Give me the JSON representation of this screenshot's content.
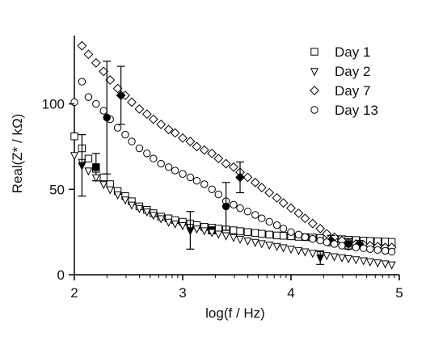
{
  "chart_data": {
    "type": "scatter",
    "xlabel": "log(f / Hz)",
    "ylabel": "Real(Z* / kΩ)",
    "xlim": [
      2,
      5
    ],
    "ylim": [
      0,
      140
    ],
    "x_ticks": [
      "2",
      "3",
      "4",
      "5"
    ],
    "y_ticks": [
      "0",
      "50",
      "100"
    ],
    "legend_position": "top-right",
    "series": [
      {
        "name": "Day 1",
        "marker": "square",
        "x": [
          2.0,
          2.07,
          2.13,
          2.2,
          2.27,
          2.33,
          2.4,
          2.47,
          2.53,
          2.6,
          2.67,
          2.73,
          2.8,
          2.87,
          2.93,
          3.0,
          3.07,
          3.13,
          3.2,
          3.27,
          3.33,
          3.4,
          3.47,
          3.53,
          3.6,
          3.67,
          3.73,
          3.8,
          3.87,
          3.93,
          4.0,
          4.07,
          4.13,
          4.2,
          4.27,
          4.33,
          4.4,
          4.47,
          4.53,
          4.6,
          4.67,
          4.73,
          4.8,
          4.87,
          4.93
        ],
        "y": [
          81,
          74,
          68,
          62,
          57,
          53,
          49,
          46,
          43,
          40,
          38,
          36,
          34,
          33,
          32,
          31,
          30,
          29,
          28,
          27.5,
          27,
          26.5,
          26,
          25.5,
          25,
          24.5,
          24,
          23.5,
          23,
          22.8,
          22.5,
          22.2,
          22,
          21.8,
          21.5,
          21.3,
          21,
          20.8,
          20.5,
          20.3,
          20,
          19.8,
          19.6,
          19.4,
          19.2
        ],
        "highlight": {
          "x": [
            2.2,
            3.27
          ],
          "y": [
            63,
            26
          ],
          "err": [
            8,
            2
          ]
        }
      },
      {
        "name": "Day 2",
        "marker": "triangle-down",
        "x": [
          2.0,
          2.07,
          2.13,
          2.2,
          2.27,
          2.33,
          2.4,
          2.47,
          2.53,
          2.6,
          2.67,
          2.73,
          2.8,
          2.87,
          2.93,
          3.0,
          3.07,
          3.13,
          3.2,
          3.27,
          3.33,
          3.4,
          3.47,
          3.53,
          3.6,
          3.67,
          3.73,
          3.8,
          3.87,
          3.93,
          4.0,
          4.07,
          4.13,
          4.2,
          4.27,
          4.33,
          4.4,
          4.47,
          4.53,
          4.6,
          4.67,
          4.73,
          4.8,
          4.87,
          4.93
        ],
        "y": [
          70,
          66,
          61,
          57,
          53,
          50,
          47,
          44,
          41,
          39,
          37,
          35,
          33,
          31,
          30,
          29,
          28,
          27,
          26,
          25,
          24,
          23,
          22,
          21,
          20,
          19.2,
          18.4,
          17.6,
          16.8,
          16,
          15.2,
          14.4,
          13.6,
          12.8,
          12,
          11.4,
          10.8,
          10.2,
          9.6,
          9,
          8.4,
          7.8,
          7.2,
          6.6,
          6
        ],
        "highlight": {
          "x": [
            2.07,
            3.07,
            4.27
          ],
          "y": [
            64,
            26,
            10
          ],
          "err": [
            18,
            11,
            4
          ]
        }
      },
      {
        "name": "Day 7",
        "marker": "diamond",
        "x": [
          2.07,
          2.13,
          2.2,
          2.27,
          2.33,
          2.4,
          2.47,
          2.53,
          2.6,
          2.67,
          2.73,
          2.8,
          2.87,
          2.93,
          3.0,
          3.07,
          3.13,
          3.2,
          3.27,
          3.33,
          3.4,
          3.47,
          3.53,
          3.6,
          3.67,
          3.73,
          3.8,
          3.87,
          3.93,
          4.0,
          4.07,
          4.13,
          4.2,
          4.27,
          4.33,
          4.4,
          4.47,
          4.53,
          4.6,
          4.67,
          4.73,
          4.8,
          4.87,
          4.93
        ],
        "y": [
          134,
          129,
          124,
          119,
          114,
          109,
          105,
          101,
          97,
          94,
          91,
          88,
          85,
          83,
          80,
          78,
          75,
          73,
          71,
          68,
          65,
          63,
          60,
          57,
          54,
          51,
          48,
          45,
          42,
          39,
          36,
          33,
          30,
          27,
          24,
          22,
          20,
          19,
          18,
          17.5,
          17,
          16.5,
          16,
          16
        ],
        "highlight": {
          "x": [
            2.43,
            3.53,
            4.37,
            4.63
          ],
          "y": [
            105,
            57,
            20,
            18
          ],
          "err": [
            17,
            9,
            3,
            2
          ]
        }
      },
      {
        "name": "Day 13",
        "marker": "circle",
        "x": [
          2.0,
          2.07,
          2.13,
          2.2,
          2.27,
          2.33,
          2.4,
          2.47,
          2.53,
          2.6,
          2.67,
          2.73,
          2.8,
          2.87,
          2.93,
          3.0,
          3.07,
          3.13,
          3.2,
          3.27,
          3.33,
          3.4,
          3.47,
          3.53,
          3.6,
          3.67,
          3.73,
          3.8,
          3.87,
          3.93,
          4.0,
          4.07,
          4.13,
          4.2,
          4.27,
          4.33,
          4.4,
          4.47,
          4.53,
          4.6,
          4.67,
          4.73,
          4.8,
          4.87,
          4.93
        ],
        "y": [
          101,
          113,
          104,
          100,
          96,
          91,
          86,
          82,
          78,
          74,
          71,
          68,
          65,
          63,
          61,
          59,
          57,
          55,
          53,
          50,
          47,
          43,
          41,
          39,
          37,
          35,
          33,
          31,
          29,
          27,
          25,
          23.5,
          22,
          21,
          20,
          19,
          18,
          17,
          16.5,
          16,
          15.5,
          15,
          14.5,
          14,
          13.5
        ],
        "highlight": {
          "x": [
            2.3,
            3.4,
            4.53
          ],
          "y": [
            92,
            40,
            18
          ],
          "err": [
            33,
            14,
            3
          ]
        }
      }
    ]
  }
}
